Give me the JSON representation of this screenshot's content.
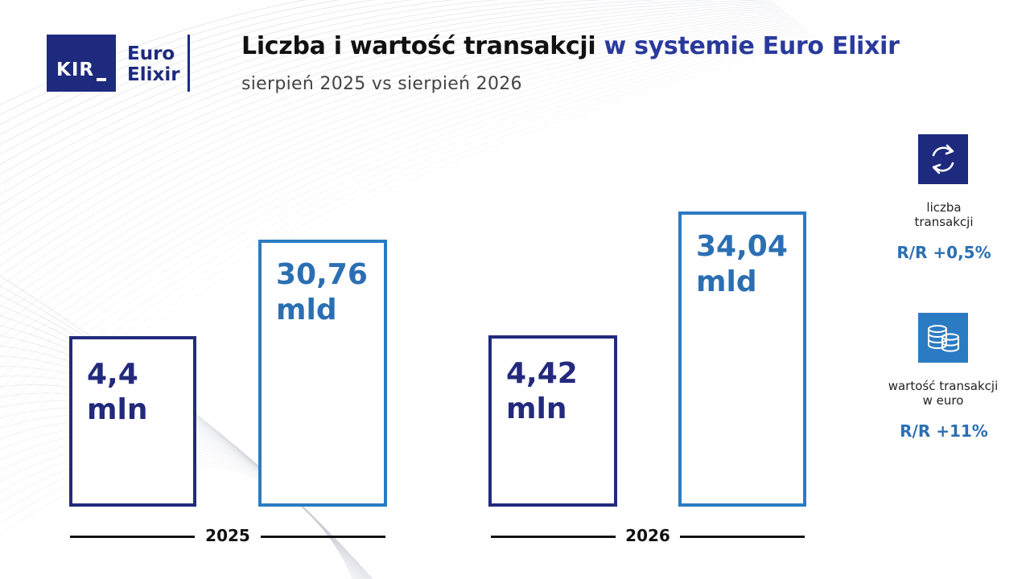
{
  "logo": {
    "kir": "KIR",
    "line1": "Euro",
    "line2": "Elixir"
  },
  "header": {
    "title_part1": "Liczba i wartość transakcji",
    "title_part2": "w systemie Euro Elixir",
    "subtitle": "sierpień 2025 vs sierpień 2026"
  },
  "chart_data": {
    "type": "bar",
    "categories": [
      "2025",
      "2026"
    ],
    "series": [
      {
        "name": "liczba transakcji",
        "values": [
          4.4,
          4.42
        ],
        "unit": "mln",
        "labels": [
          "4,4",
          "4,42"
        ]
      },
      {
        "name": "wartość transakcji w euro",
        "values": [
          30.76,
          34.04
        ],
        "unit": "mld",
        "labels": [
          "30,76",
          "34,04"
        ]
      }
    ],
    "colors": {
      "count": "#232a7d",
      "value": "#2b7bc2"
    }
  },
  "metrics": [
    {
      "icon": "exchange-arrows-icon",
      "label_line1": "liczba",
      "label_line2": "transakcji",
      "value": "R/R +0,5%"
    },
    {
      "icon": "coins-stack-icon",
      "label_line1": "wartość transakcji",
      "label_line2": "w euro",
      "value": "R/R +11%"
    }
  ]
}
